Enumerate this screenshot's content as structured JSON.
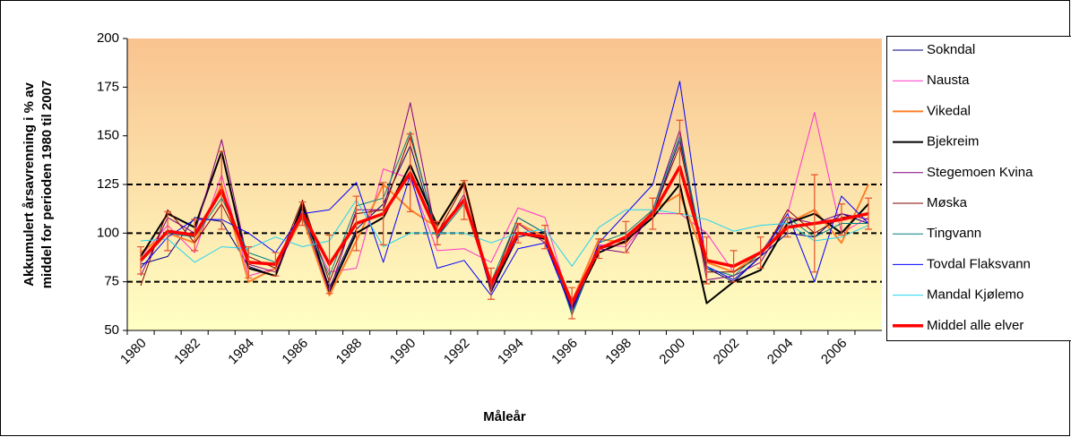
{
  "chart_data": {
    "type": "line",
    "ylabel": [
      "Akkumulert årsavrenning i % av",
      "middel for perioden 1980 til 2007"
    ],
    "xlabel": "Måleår",
    "categories": [
      "1980",
      null,
      "1982",
      null,
      "1984",
      null,
      "1986",
      null,
      "1988",
      null,
      "1990",
      null,
      "1992",
      null,
      "1994",
      null,
      "1996",
      null,
      "1998",
      null,
      "2000",
      null,
      "2002",
      null,
      "2004",
      null,
      "2006",
      null
    ],
    "ylim": [
      50,
      200
    ],
    "yticks": [
      50,
      75,
      100,
      125,
      150,
      175,
      200
    ],
    "reference_lines": [
      75,
      100,
      125
    ],
    "legend": "right",
    "series": [
      {
        "name": "Sokndal",
        "color": "#000080",
        "line_width": 1,
        "values": [
          84,
          88,
          108,
          106,
          83,
          78,
          113,
          72,
          102,
          115,
          145,
          98,
          118,
          70,
          98,
          101,
          58,
          93,
          97,
          110,
          148,
          82,
          75,
          88,
          100,
          98,
          110,
          105
        ]
      },
      {
        "name": "Nausta",
        "color": "#ff33cc",
        "line_width": 1,
        "values": [
          88,
          104,
          90,
          130,
          78,
          82,
          108,
          80,
          82,
          133,
          128,
          91,
          92,
          85,
          113,
          108,
          60,
          94,
          93,
          110,
          110,
          100,
          80,
          90,
          110,
          162,
          100,
          108
        ]
      },
      {
        "name": "Vikedal",
        "color": "#ff7f27",
        "line_width": 2,
        "values": [
          90,
          100,
          95,
          125,
          75,
          82,
          108,
          68,
          96,
          125,
          112,
          103,
          127,
          70,
          105,
          98,
          65,
          97,
          95,
          112,
          120,
          85,
          80,
          90,
          105,
          112,
          95,
          125
        ]
      },
      {
        "name": "Bjekreim",
        "color": "#000000",
        "line_width": 2,
        "values": [
          88,
          110,
          103,
          142,
          82,
          78,
          115,
          70,
          100,
          108,
          135,
          104,
          126,
          70,
          100,
          97,
          62,
          90,
          96,
          108,
          125,
          64,
          75,
          81,
          105,
          110,
          100,
          115
        ]
      },
      {
        "name": "Stegemoen Kvina",
        "color": "#800080",
        "line_width": 1,
        "values": [
          78,
          108,
          100,
          148,
          84,
          80,
          110,
          70,
          112,
          112,
          167,
          97,
          120,
          70,
          105,
          95,
          62,
          92,
          90,
          112,
          153,
          76,
          78,
          85,
          108,
          105,
          110,
          107
        ]
      },
      {
        "name": "Møska",
        "color": "#800000",
        "line_width": 1,
        "values": [
          73,
          112,
          95,
          115,
          88,
          82,
          117,
          75,
          110,
          112,
          150,
          100,
          125,
          72,
          108,
          100,
          60,
          92,
          95,
          110,
          145,
          80,
          80,
          88,
          112,
          100,
          108,
          110
        ]
      },
      {
        "name": "Tingvann",
        "color": "#008080",
        "line_width": 1,
        "values": [
          85,
          100,
          98,
          118,
          90,
          85,
          108,
          78,
          114,
          118,
          152,
          98,
          115,
          75,
          108,
          100,
          58,
          95,
          100,
          112,
          150,
          82,
          78,
          90,
          108,
          98,
          105,
          105
        ]
      },
      {
        "name": "Tovdal Flaksvann",
        "color": "#0000ff",
        "line_width": 1,
        "values": [
          82,
          98,
          107,
          107,
          100,
          90,
          110,
          112,
          126,
          85,
          130,
          82,
          86,
          68,
          92,
          95,
          60,
          95,
          110,
          125,
          178,
          83,
          76,
          88,
          110,
          75,
          119,
          105
        ]
      },
      {
        "name": "Mandal Kjølemo",
        "color": "#22d4f0",
        "line_width": 1,
        "values": [
          96,
          97,
          85,
          93,
          92,
          98,
          93,
          96,
          117,
          93,
          100,
          100,
          100,
          95,
          100,
          102,
          83,
          103,
          112,
          112,
          110,
          107,
          101,
          104,
          105,
          96,
          98,
          104
        ]
      },
      {
        "name": "Middel alle elver",
        "color": "#ff0000",
        "line_width": 3.5,
        "error_color": "#e8502a",
        "values": [
          86,
          101,
          99,
          122,
          85,
          84,
          110,
          84,
          105,
          110,
          131,
          100,
          117,
          74,
          100,
          98,
          64,
          92,
          98,
          110,
          134,
          86,
          83,
          90,
          103,
          105,
          107,
          110
        ],
        "errors": [
          7,
          10,
          8,
          20,
          8,
          6,
          6,
          15,
          14,
          16,
          20,
          6,
          10,
          8,
          5,
          6,
          8,
          5,
          8,
          8,
          24,
          12,
          8,
          8,
          5,
          25,
          8,
          8
        ]
      }
    ]
  }
}
